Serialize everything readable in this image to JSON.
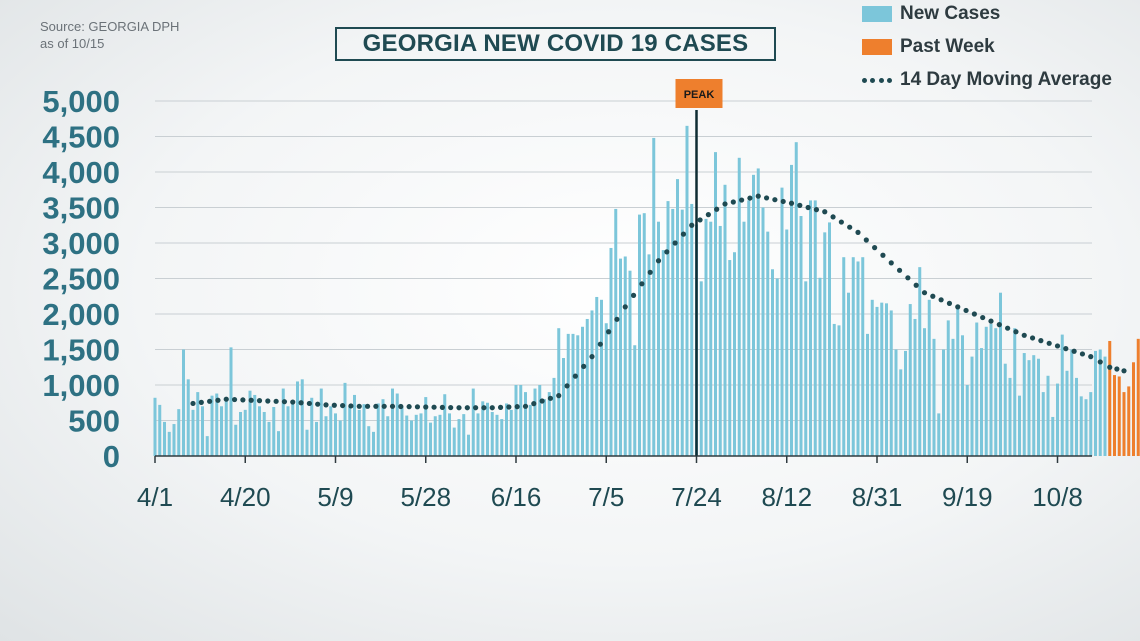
{
  "source": {
    "line1": "Source: GEORGIA DPH",
    "line2": "as of 10/15"
  },
  "colors": {
    "new_cases": "#7cc6da",
    "past_week": "#ee7f2d",
    "moving_avg": "#1f4a52",
    "axis_text": "#2e7183",
    "grid": "#c9cfd3",
    "peak_line": "#0f2c33"
  },
  "legend": {
    "new_cases": "New Cases",
    "past_week": "Past Week",
    "moving_avg": "14 Day Moving Average"
  },
  "chart_data": {
    "type": "bar",
    "title": "GEORGIA NEW COVID 19 CASES",
    "ylim": [
      0,
      5000
    ],
    "y_ticks": [
      "0",
      "500",
      "1,000",
      "1,500",
      "2,000",
      "2,500",
      "3,000",
      "3,500",
      "4,000",
      "4,500",
      "5,000"
    ],
    "x_ticks": [
      "4/1",
      "4/20",
      "5/9",
      "5/28",
      "6/16",
      "7/5",
      "7/24",
      "8/12",
      "8/31",
      "9/19",
      "10/8"
    ],
    "x_start_date": "4/1",
    "grid": true,
    "annotations": [
      {
        "text": "PEAK",
        "x_label": "7/24"
      }
    ],
    "series": [
      {
        "name": "New Cases",
        "values": [
          820,
          720,
          480,
          340,
          450,
          660,
          1500,
          1080,
          650,
          900,
          700,
          280,
          850,
          880,
          700,
          820,
          1530,
          440,
          620,
          650,
          920,
          860,
          700,
          620,
          480,
          690,
          350,
          950,
          700,
          760,
          1050,
          1080,
          370,
          820,
          480,
          950,
          560,
          700,
          600,
          500,
          1030,
          700,
          860,
          650,
          730,
          420,
          340,
          740,
          800,
          560,
          950,
          880,
          700,
          570,
          500,
          580,
          600,
          830,
          470,
          560,
          580,
          870,
          600,
          400,
          520,
          590,
          300,
          950,
          600,
          770,
          750,
          620,
          580,
          520,
          740,
          650,
          1000,
          1000,
          900,
          720,
          950,
          1000,
          800,
          900,
          1100,
          1800,
          1380,
          1720,
          1720,
          1700,
          1820,
          1930,
          2050,
          2240,
          2200,
          1870,
          2930,
          3480,
          2780,
          2810,
          2610,
          1560,
          3400,
          3420,
          2840,
          4480,
          3300,
          2900,
          3590,
          3480,
          3900,
          3470,
          4650,
          3550,
          3260,
          2460,
          3340,
          3300,
          4280,
          3240,
          3820,
          2760,
          2870,
          4200,
          3300,
          3600,
          3960,
          4050,
          3500,
          3160,
          2630,
          2500,
          3780,
          3190,
          4100,
          4420,
          3380,
          2460,
          3600,
          3600,
          2510,
          3150,
          3290,
          1860,
          1840,
          2800,
          2300,
          2800,
          2740,
          2800,
          1720,
          2200,
          2100,
          2160,
          2150,
          2050,
          1500,
          1220,
          1480,
          2140,
          1930,
          2660,
          1800,
          2200,
          1650,
          600,
          1500,
          1910,
          1650,
          2120,
          1700,
          1000,
          1400,
          1880,
          1520,
          1820,
          1860,
          1800,
          2300,
          1300,
          1100,
          1800,
          850,
          1450,
          1350,
          1420,
          1370,
          900,
          1130,
          550,
          1020,
          1710,
          1200,
          1500,
          1100,
          840,
          800,
          900,
          1480,
          1500,
          1400
        ],
        "color": "#7cc6da"
      },
      {
        "name": "Past Week",
        "values": [
          1620,
          1140,
          1120,
          900,
          980,
          1320,
          1650
        ],
        "color": "#ee7f2d"
      },
      {
        "name": "14 Day Moving Average",
        "style": "dotted-line",
        "points": [
          {
            "day": 8,
            "value": 740
          },
          {
            "day": 15,
            "value": 800
          },
          {
            "day": 22,
            "value": 780
          },
          {
            "day": 29,
            "value": 760
          },
          {
            "day": 36,
            "value": 720
          },
          {
            "day": 43,
            "value": 700
          },
          {
            "day": 50,
            "value": 700
          },
          {
            "day": 57,
            "value": 690
          },
          {
            "day": 64,
            "value": 680
          },
          {
            "day": 71,
            "value": 680
          },
          {
            "day": 78,
            "value": 700
          },
          {
            "day": 85,
            "value": 850
          },
          {
            "day": 92,
            "value": 1400
          },
          {
            "day": 99,
            "value": 2100
          },
          {
            "day": 106,
            "value": 2750
          },
          {
            "day": 113,
            "value": 3250
          },
          {
            "day": 120,
            "value": 3550
          },
          {
            "day": 127,
            "value": 3660
          },
          {
            "day": 134,
            "value": 3560
          },
          {
            "day": 141,
            "value": 3440
          },
          {
            "day": 148,
            "value": 3150
          },
          {
            "day": 155,
            "value": 2720
          },
          {
            "day": 162,
            "value": 2300
          },
          {
            "day": 169,
            "value": 2100
          },
          {
            "day": 176,
            "value": 1900
          },
          {
            "day": 183,
            "value": 1700
          },
          {
            "day": 190,
            "value": 1550
          },
          {
            "day": 197,
            "value": 1400
          },
          {
            "day": 201,
            "value": 1250
          },
          {
            "day": 204,
            "value": 1200
          }
        ],
        "color": "#1f4a52"
      }
    ]
  }
}
